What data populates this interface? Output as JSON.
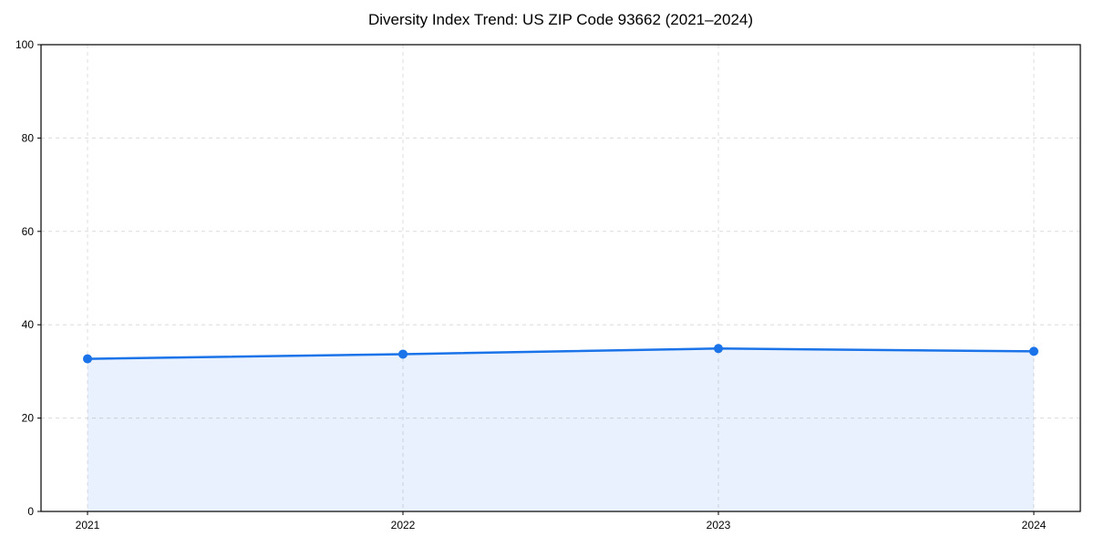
{
  "chart_data": {
    "type": "area",
    "title": "Diversity Index Trend: US ZIP Code 93662 (2021–2024)",
    "categories": [
      "2021",
      "2022",
      "2023",
      "2024"
    ],
    "series": [
      {
        "name": "Diversity Index",
        "values": [
          32.7,
          33.7,
          34.9,
          34.3
        ]
      }
    ],
    "xlabel": "",
    "ylabel": "",
    "ylim": [
      0,
      100
    ],
    "yticks": [
      0,
      20,
      40,
      60,
      80,
      100
    ],
    "grid": true,
    "grid_style": "dashed",
    "legend_position": "none",
    "marker": "circle",
    "colors": {
      "line": "#1a73e8",
      "marker": "#1a73e8",
      "fill": "rgba(26,115,232,0.10)",
      "grid": "#dcdcdc",
      "spine": "#000000",
      "tick_label": "#000000",
      "background": "#ffffff"
    }
  }
}
